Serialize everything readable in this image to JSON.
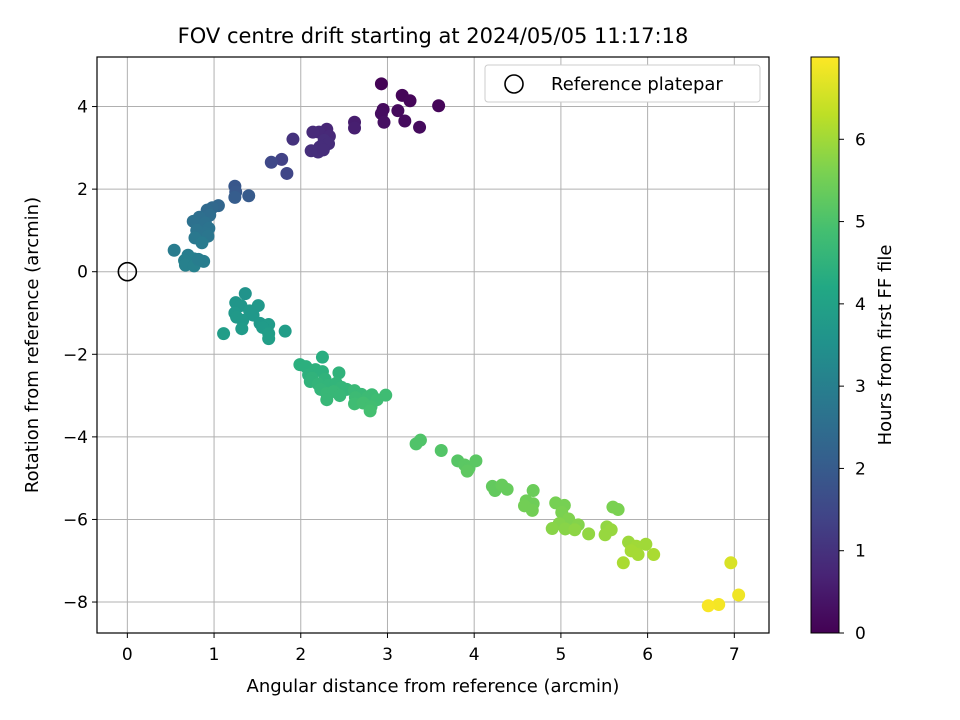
{
  "chart_data": {
    "type": "scatter",
    "title": "FOV centre drift starting at 2024/05/05 11:17:18",
    "xlabel": "Angular distance from reference (arcmin)",
    "ylabel": "Rotation from reference (arcmin)",
    "xlim": [
      -0.35,
      7.4
    ],
    "ylim": [
      -8.75,
      5.2
    ],
    "xticks": [
      0,
      1,
      2,
      3,
      4,
      5,
      6,
      7
    ],
    "yticks": [
      -8,
      -6,
      -4,
      -2,
      0,
      2,
      4
    ],
    "grid": true,
    "legend": {
      "location": "top-right",
      "entries": [
        "Reference platepar"
      ]
    },
    "reference_point": {
      "x": 0,
      "y": 0
    },
    "colorbar": {
      "label": "Hours from first FF file",
      "range": [
        0,
        7.0
      ],
      "ticks": [
        0,
        1,
        2,
        3,
        4,
        5,
        6
      ],
      "colormap": "viridis"
    },
    "points": [
      {
        "x": 2.93,
        "y": 4.55,
        "h": 0.05
      },
      {
        "x": 3.17,
        "y": 4.27,
        "h": 0.08
      },
      {
        "x": 3.26,
        "y": 4.14,
        "h": 0.1
      },
      {
        "x": 3.59,
        "y": 4.02,
        "h": 0.1
      },
      {
        "x": 2.95,
        "y": 3.93,
        "h": 0.2
      },
      {
        "x": 2.93,
        "y": 3.83,
        "h": 0.25
      },
      {
        "x": 3.12,
        "y": 3.9,
        "h": 0.18
      },
      {
        "x": 3.2,
        "y": 3.65,
        "h": 0.2
      },
      {
        "x": 2.96,
        "y": 3.62,
        "h": 0.3
      },
      {
        "x": 3.37,
        "y": 3.5,
        "h": 0.2
      },
      {
        "x": 2.62,
        "y": 3.62,
        "h": 0.55
      },
      {
        "x": 2.62,
        "y": 3.48,
        "h": 0.6
      },
      {
        "x": 2.3,
        "y": 3.45,
        "h": 0.75
      },
      {
        "x": 2.21,
        "y": 3.38,
        "h": 0.8
      },
      {
        "x": 2.14,
        "y": 3.38,
        "h": 0.85
      },
      {
        "x": 2.33,
        "y": 3.28,
        "h": 0.8
      },
      {
        "x": 2.27,
        "y": 3.18,
        "h": 0.9
      },
      {
        "x": 2.32,
        "y": 3.1,
        "h": 0.9
      },
      {
        "x": 2.22,
        "y": 3.02,
        "h": 0.9
      },
      {
        "x": 2.12,
        "y": 2.93,
        "h": 0.95
      },
      {
        "x": 2.2,
        "y": 2.9,
        "h": 0.95
      },
      {
        "x": 2.26,
        "y": 2.95,
        "h": 0.9
      },
      {
        "x": 1.91,
        "y": 3.21,
        "h": 1.0
      },
      {
        "x": 1.78,
        "y": 2.72,
        "h": 1.35
      },
      {
        "x": 1.66,
        "y": 2.65,
        "h": 1.5
      },
      {
        "x": 1.84,
        "y": 2.38,
        "h": 1.45
      },
      {
        "x": 1.24,
        "y": 2.07,
        "h": 1.9
      },
      {
        "x": 1.25,
        "y": 1.93,
        "h": 1.95
      },
      {
        "x": 1.4,
        "y": 1.84,
        "h": 2.0
      },
      {
        "x": 1.24,
        "y": 1.8,
        "h": 2.05
      },
      {
        "x": 1.05,
        "y": 1.6,
        "h": 2.3
      },
      {
        "x": 0.98,
        "y": 1.55,
        "h": 2.35
      },
      {
        "x": 0.92,
        "y": 1.49,
        "h": 2.4
      },
      {
        "x": 0.95,
        "y": 1.37,
        "h": 2.5
      },
      {
        "x": 0.83,
        "y": 1.32,
        "h": 2.55
      },
      {
        "x": 0.76,
        "y": 1.22,
        "h": 2.6
      },
      {
        "x": 0.9,
        "y": 1.18,
        "h": 2.6
      },
      {
        "x": 0.94,
        "y": 1.05,
        "h": 2.65
      },
      {
        "x": 0.8,
        "y": 1.0,
        "h": 2.7
      },
      {
        "x": 0.91,
        "y": 0.92,
        "h": 2.7
      },
      {
        "x": 0.78,
        "y": 0.82,
        "h": 2.8
      },
      {
        "x": 0.93,
        "y": 0.86,
        "h": 2.75
      },
      {
        "x": 0.86,
        "y": 0.7,
        "h": 2.85
      },
      {
        "x": 0.54,
        "y": 0.52,
        "h": 2.9
      },
      {
        "x": 0.7,
        "y": 0.4,
        "h": 2.95
      },
      {
        "x": 0.77,
        "y": 0.31,
        "h": 3.0
      },
      {
        "x": 0.66,
        "y": 0.27,
        "h": 3.0
      },
      {
        "x": 0.88,
        "y": 0.25,
        "h": 2.95
      },
      {
        "x": 0.67,
        "y": 0.16,
        "h": 3.05
      },
      {
        "x": 0.77,
        "y": 0.14,
        "h": 3.05
      },
      {
        "x": 0.82,
        "y": 0.3,
        "h": 2.95
      },
      {
        "x": 1.36,
        "y": -0.53,
        "h": 3.55
      },
      {
        "x": 1.25,
        "y": -0.75,
        "h": 3.65
      },
      {
        "x": 1.31,
        "y": -0.82,
        "h": 3.65
      },
      {
        "x": 1.51,
        "y": -0.82,
        "h": 3.7
      },
      {
        "x": 1.41,
        "y": -0.95,
        "h": 3.7
      },
      {
        "x": 1.24,
        "y": -1.0,
        "h": 3.7
      },
      {
        "x": 1.45,
        "y": -1.05,
        "h": 3.7
      },
      {
        "x": 1.26,
        "y": -1.1,
        "h": 3.75
      },
      {
        "x": 1.33,
        "y": -1.18,
        "h": 3.75
      },
      {
        "x": 1.53,
        "y": -1.25,
        "h": 3.75
      },
      {
        "x": 1.63,
        "y": -1.28,
        "h": 3.8
      },
      {
        "x": 1.56,
        "y": -1.35,
        "h": 3.8
      },
      {
        "x": 1.32,
        "y": -1.38,
        "h": 3.8
      },
      {
        "x": 1.82,
        "y": -1.44,
        "h": 3.85
      },
      {
        "x": 1.11,
        "y": -1.5,
        "h": 3.85
      },
      {
        "x": 1.63,
        "y": -1.5,
        "h": 3.85
      },
      {
        "x": 1.63,
        "y": -1.62,
        "h": 3.9
      },
      {
        "x": 2.25,
        "y": -2.07,
        "h": 4.35
      },
      {
        "x": 1.99,
        "y": -2.25,
        "h": 4.4
      },
      {
        "x": 2.06,
        "y": -2.3,
        "h": 4.4
      },
      {
        "x": 2.17,
        "y": -2.37,
        "h": 4.45
      },
      {
        "x": 2.25,
        "y": -2.42,
        "h": 4.45
      },
      {
        "x": 2.09,
        "y": -2.5,
        "h": 4.45
      },
      {
        "x": 2.13,
        "y": -2.58,
        "h": 4.5
      },
      {
        "x": 2.28,
        "y": -2.6,
        "h": 4.5
      },
      {
        "x": 2.44,
        "y": -2.45,
        "h": 4.5
      },
      {
        "x": 2.11,
        "y": -2.66,
        "h": 4.5
      },
      {
        "x": 2.2,
        "y": -2.72,
        "h": 4.55
      },
      {
        "x": 2.32,
        "y": -2.75,
        "h": 4.55
      },
      {
        "x": 2.41,
        "y": -2.7,
        "h": 4.55
      },
      {
        "x": 2.23,
        "y": -2.85,
        "h": 4.6
      },
      {
        "x": 2.47,
        "y": -2.8,
        "h": 4.6
      },
      {
        "x": 2.53,
        "y": -2.85,
        "h": 4.6
      },
      {
        "x": 2.3,
        "y": -2.95,
        "h": 4.65
      },
      {
        "x": 2.38,
        "y": -2.9,
        "h": 4.65
      },
      {
        "x": 2.45,
        "y": -3.0,
        "h": 4.65
      },
      {
        "x": 2.62,
        "y": -2.88,
        "h": 4.7
      },
      {
        "x": 2.7,
        "y": -2.97,
        "h": 4.7
      },
      {
        "x": 2.82,
        "y": -2.98,
        "h": 4.75
      },
      {
        "x": 2.63,
        "y": -3.05,
        "h": 4.75
      },
      {
        "x": 2.77,
        "y": -3.05,
        "h": 4.75
      },
      {
        "x": 2.98,
        "y": -2.99,
        "h": 4.8
      },
      {
        "x": 2.88,
        "y": -3.1,
        "h": 4.8
      },
      {
        "x": 2.62,
        "y": -3.2,
        "h": 4.8
      },
      {
        "x": 2.72,
        "y": -3.18,
        "h": 4.85
      },
      {
        "x": 2.81,
        "y": -3.27,
        "h": 4.85
      },
      {
        "x": 2.8,
        "y": -3.37,
        "h": 4.9
      },
      {
        "x": 2.3,
        "y": -3.1,
        "h": 4.65
      },
      {
        "x": 3.38,
        "y": -4.08,
        "h": 5.05
      },
      {
        "x": 3.33,
        "y": -4.17,
        "h": 5.05
      },
      {
        "x": 3.62,
        "y": -4.33,
        "h": 5.1
      },
      {
        "x": 3.81,
        "y": -4.58,
        "h": 5.15
      },
      {
        "x": 3.89,
        "y": -4.68,
        "h": 5.2
      },
      {
        "x": 3.94,
        "y": -4.76,
        "h": 5.2
      },
      {
        "x": 4.02,
        "y": -4.58,
        "h": 5.2
      },
      {
        "x": 3.92,
        "y": -4.83,
        "h": 5.25
      },
      {
        "x": 4.21,
        "y": -5.2,
        "h": 5.3
      },
      {
        "x": 4.24,
        "y": -5.3,
        "h": 5.3
      },
      {
        "x": 4.32,
        "y": -5.17,
        "h": 5.35
      },
      {
        "x": 4.38,
        "y": -5.27,
        "h": 5.35
      },
      {
        "x": 4.68,
        "y": -5.3,
        "h": 5.4
      },
      {
        "x": 4.6,
        "y": -5.55,
        "h": 5.45
      },
      {
        "x": 4.68,
        "y": -5.62,
        "h": 5.45
      },
      {
        "x": 4.58,
        "y": -5.67,
        "h": 5.5
      },
      {
        "x": 4.67,
        "y": -5.78,
        "h": 5.5
      },
      {
        "x": 4.94,
        "y": -5.6,
        "h": 5.55
      },
      {
        "x": 5.04,
        "y": -5.66,
        "h": 5.55
      },
      {
        "x": 5.01,
        "y": -5.83,
        "h": 5.6
      },
      {
        "x": 5.09,
        "y": -5.99,
        "h": 5.65
      },
      {
        "x": 4.98,
        "y": -6.1,
        "h": 5.7
      },
      {
        "x": 5.2,
        "y": -6.13,
        "h": 5.7
      },
      {
        "x": 4.9,
        "y": -6.22,
        "h": 5.75
      },
      {
        "x": 5.05,
        "y": -6.23,
        "h": 5.75
      },
      {
        "x": 5.16,
        "y": -6.25,
        "h": 5.8
      },
      {
        "x": 5.32,
        "y": -6.35,
        "h": 5.85
      },
      {
        "x": 5.6,
        "y": -5.7,
        "h": 5.6
      },
      {
        "x": 5.66,
        "y": -5.76,
        "h": 5.6
      },
      {
        "x": 5.53,
        "y": -6.18,
        "h": 5.85
      },
      {
        "x": 5.58,
        "y": -6.25,
        "h": 5.9
      },
      {
        "x": 5.51,
        "y": -6.37,
        "h": 5.9
      },
      {
        "x": 5.78,
        "y": -6.55,
        "h": 5.95
      },
      {
        "x": 5.87,
        "y": -6.65,
        "h": 6.0
      },
      {
        "x": 5.98,
        "y": -6.6,
        "h": 6.0
      },
      {
        "x": 5.81,
        "y": -6.76,
        "h": 6.05
      },
      {
        "x": 5.89,
        "y": -6.85,
        "h": 6.05
      },
      {
        "x": 6.07,
        "y": -6.85,
        "h": 6.1
      },
      {
        "x": 5.72,
        "y": -7.05,
        "h": 6.1
      },
      {
        "x": 6.96,
        "y": -7.05,
        "h": 6.6
      },
      {
        "x": 7.05,
        "y": -7.83,
        "h": 6.85
      },
      {
        "x": 6.82,
        "y": -8.06,
        "h": 6.9
      },
      {
        "x": 6.7,
        "y": -8.09,
        "h": 6.95
      }
    ]
  }
}
